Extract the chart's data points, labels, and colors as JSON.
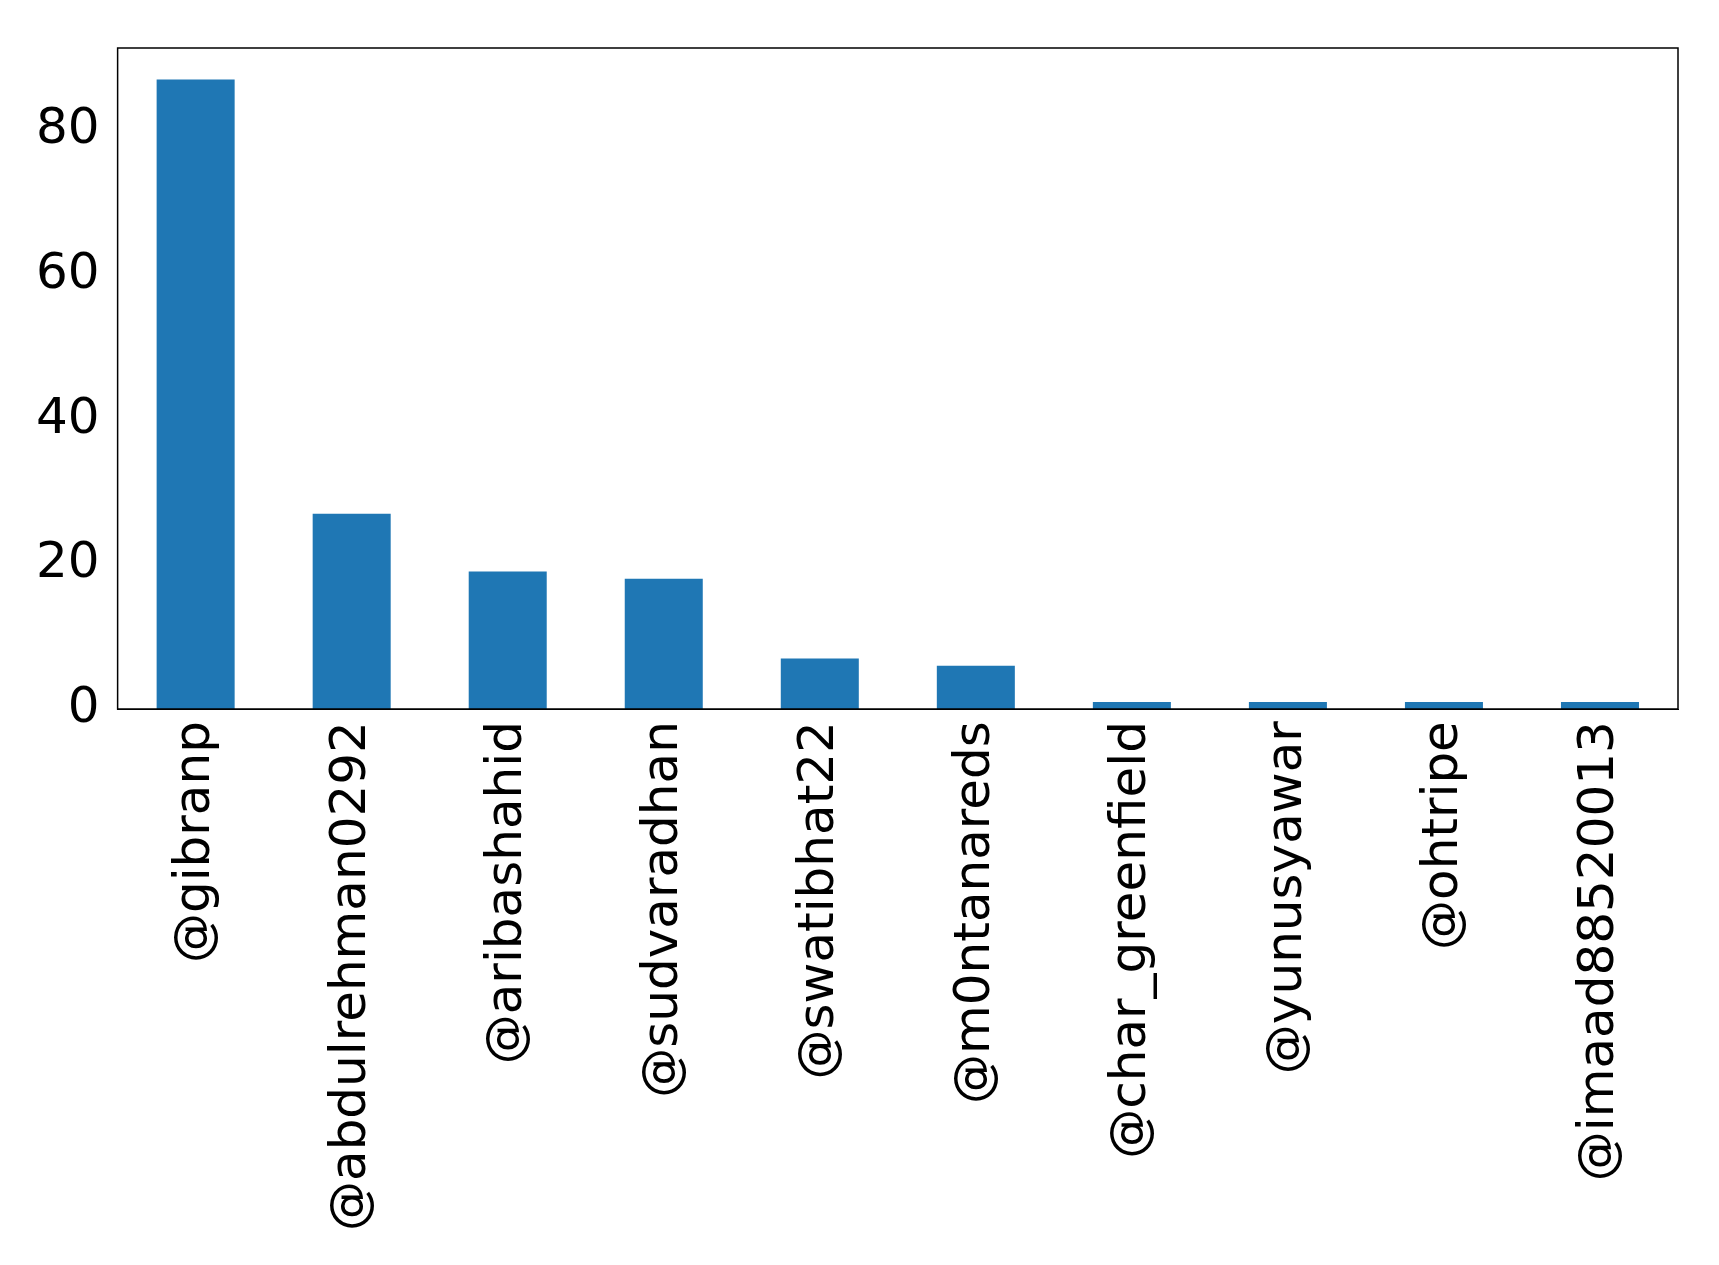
{
  "chart_data": {
    "type": "bar",
    "categories": [
      "@gibranp",
      "@abdulrehman0292",
      "@aribashahid",
      "@sudvaradhan",
      "@swatibhat22",
      "@m0ntanareds",
      "@char_greenfield",
      "@yunusyawar",
      "@ohtripe",
      "@imaad88520013"
    ],
    "values": [
      87,
      27,
      19,
      18,
      7,
      6,
      1,
      1,
      1,
      1
    ],
    "color": "#1f77b4",
    "ylim": [
      0,
      91.35
    ],
    "yticks": [
      0,
      20,
      40,
      60,
      80
    ],
    "grid": false,
    "legend": false
  }
}
